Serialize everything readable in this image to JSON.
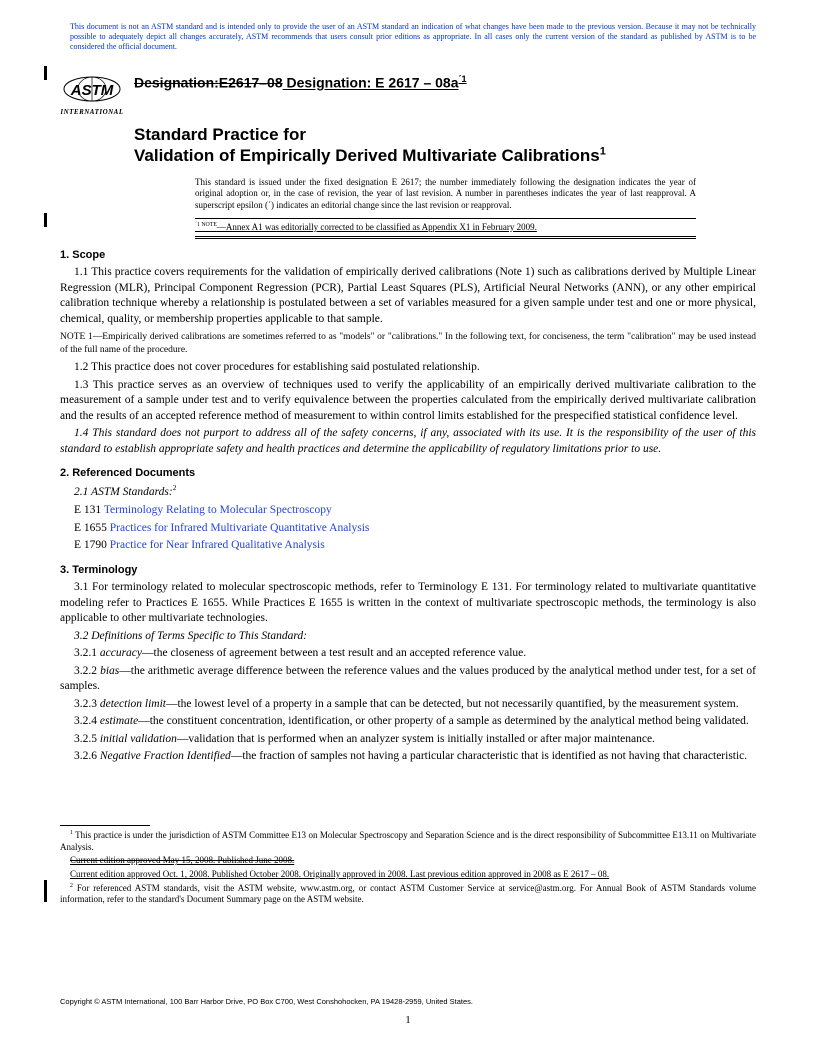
{
  "disclaimer": "This document is not an ASTM standard and is intended only to provide the user of an ASTM standard an indication of what changes have been made to the previous version. Because it may not be technically possible to adequately depict all changes accurately, ASTM recommends that users consult prior editions as appropriate. In all cases only the current version of the standard as published by ASTM is to be considered the official document.",
  "logo": {
    "international": "INTERNATIONAL"
  },
  "designation": {
    "prefix": "Designation:",
    "strike": "E2617–08",
    "new_prefix": " Designation: E 2617 – 08a",
    "eps": "´1"
  },
  "title_lead": "Standard Practice for",
  "title_main": "Validation of Empirically Derived Multivariate Calibrations",
  "title_sup": "1",
  "issuance": "This standard is issued under the fixed designation E 2617; the number immediately following the designation indicates the year of original adoption or, in the case of revision, the year of last revision. A number in parentheses indicates the year of last reapproval. A superscript epsilon (´) indicates an editorial change since the last revision or reapproval.",
  "eps_note_label": "´1 NOTE",
  "eps_note_text": "—Annex A1 was editorially corrected to be classified as Appendix X1 in February 2009.",
  "scope": {
    "head": "1. Scope",
    "p11": "1.1 This practice covers requirements for the validation of empirically derived calibrations (Note 1) such as calibrations derived by Multiple Linear Regression (MLR), Principal Component Regression (PCR), Partial Least Squares (PLS), Artificial Neural Networks (ANN), or any other empirical calibration technique whereby a relationship is postulated between a set of variables measured for a given sample under test and one or more physical, chemical, quality, or membership properties applicable to that sample.",
    "note1_label": "NOTE 1",
    "note1": "—Empirically derived calibrations are sometimes referred to as \"models\" or \"calibrations.\" In the following text, for conciseness, the term \"calibration\" may be used instead of the full name of the procedure.",
    "p12": "1.2 This practice does not cover procedures for establishing said postulated relationship.",
    "p13": "1.3 This practice serves as an overview of techniques used to verify the applicability of an empirically derived multivariate calibration to the measurement of a sample under test and to verify equivalence between the properties calculated from the empirically derived multivariate calibration and the results of an accepted reference method of measurement to within control limits established for the prespecified statistical confidence level.",
    "p14": "1.4 This standard does not purport to address all of the safety concerns, if any, associated with its use. It is the responsibility of the user of this standard to establish appropriate safety and health practices and determine the applicability of regulatory limitations prior to use."
  },
  "refdocs": {
    "head": "2. Referenced Documents",
    "p21": "2.1 ASTM Standards:",
    "sup2": "2",
    "items": [
      {
        "code": "E 131",
        "title": "Terminology Relating to Molecular Spectroscopy"
      },
      {
        "code": "E 1655",
        "title": "Practices for Infrared Multivariate Quantitative Analysis"
      },
      {
        "code": "E 1790",
        "title": "Practice for Near Infrared Qualitative Analysis"
      }
    ]
  },
  "terminology": {
    "head": "3. Terminology",
    "p31": "3.1 For terminology related to molecular spectroscopic methods, refer to Terminology E 131. For terminology related to multivariate quantitative modeling refer to Practices E 1655. While Practices E 1655 is written in the context of multivariate spectroscopic methods, the terminology is also applicable to other multivariate technologies.",
    "p32": "3.2 Definitions of Terms Specific to This Standard:",
    "defs": [
      {
        "num": "3.2.1",
        "term": "accuracy",
        "def": "—the closeness of agreement between a test result and an accepted reference value."
      },
      {
        "num": "3.2.2",
        "term": "bias",
        "def": "—the arithmetic average difference between the reference values and the values produced by the analytical method under test, for a set of samples."
      },
      {
        "num": "3.2.3",
        "term": "detection limit",
        "def": "—the lowest level of a property in a sample that can be detected, but not necessarily quantified, by the measurement system."
      },
      {
        "num": "3.2.4",
        "term": "estimate",
        "def": "—the constituent concentration, identification, or other property of a sample as determined by the analytical method being validated."
      },
      {
        "num": "3.2.5",
        "term": "initial validation",
        "def": "—validation that is performed when an analyzer system is initially installed or after major maintenance."
      },
      {
        "num": "3.2.6",
        "term": "Negative Fraction Identified",
        "def": "—the fraction of samples not having a particular characteristic that is identified as not having that characteristic."
      }
    ]
  },
  "footnotes": {
    "f1": " This practice is under the jurisdiction of ASTM Committee E13 on Molecular Spectroscopy and Separation Science and is the direct responsibility of Subcommittee E13.11 on Multivariate Analysis.",
    "f1_strike": "Current edition approved May 15, 2008. Published June 2008.",
    "f1_new": "Current edition approved Oct. 1, 2008. Published October 2008. Originally approved in 2008. Last previous edition approved in 2008 as E 2617 – 08.",
    "f2": " For referenced ASTM standards, visit the ASTM website, www.astm.org, or contact ASTM Customer Service at service@astm.org. For Annual Book of ASTM Standards volume information, refer to the standard's Document Summary page on the ASTM website."
  },
  "copyright": "Copyright © ASTM International, 100 Barr Harbor Drive, PO Box C700, West Conshohocken, PA 19428-2959, United States.",
  "pagenum": "1"
}
